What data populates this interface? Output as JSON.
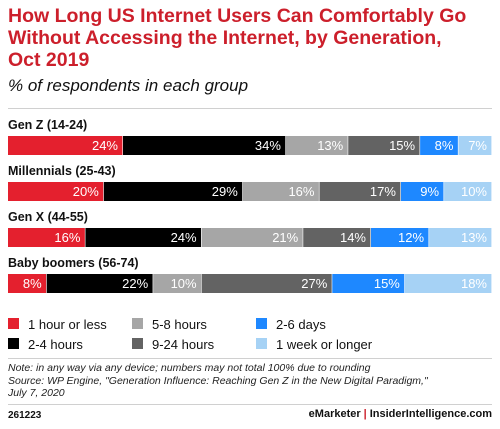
{
  "chart_data": {
    "type": "bar",
    "orientation": "horizontal",
    "stacked": true,
    "title": "How Long US Internet Users Can Comfortably Go Without Accessing the Internet, by Generation, Oct 2019",
    "subtitle": "% of respondents in each group",
    "categories": [
      "Gen Z (14-24)",
      "Millennials (25-43)",
      "Gen X (44-55)",
      "Baby boomers (56-74)"
    ],
    "series": [
      {
        "name": "1 hour or less",
        "color": "#e4202e",
        "text_color": "#ffffff",
        "values": [
          24,
          20,
          16,
          8
        ]
      },
      {
        "name": "2-4 hours",
        "color": "#000000",
        "text_color": "#ffffff",
        "values": [
          34,
          29,
          24,
          22
        ]
      },
      {
        "name": "5-8 hours",
        "color": "#a6a6a6",
        "text_color": "#ffffff",
        "values": [
          13,
          16,
          21,
          10
        ]
      },
      {
        "name": "9-24 hours",
        "color": "#636363",
        "text_color": "#ffffff",
        "values": [
          15,
          17,
          14,
          27
        ]
      },
      {
        "name": "2-6 days",
        "color": "#1e88ff",
        "text_color": "#ffffff",
        "values": [
          8,
          9,
          12,
          15
        ]
      },
      {
        "name": "1 week or longer",
        "color": "#a6d2f5",
        "text_color": "#ffffff",
        "values": [
          7,
          10,
          13,
          18
        ]
      }
    ],
    "value_suffix": "%",
    "legend_position": "bottom",
    "legend_order": [
      "1 hour or less",
      "5-8 hours",
      "2-6 days",
      "2-4 hours",
      "9-24 hours",
      "1 week or longer"
    ],
    "grid": false
  },
  "footer": {
    "note_lines": [
      "Note: in any way via any device; numbers may not total 100% due to rounding",
      "Source: WP Engine, \"Generation Influence: Reaching Gen Z in the New Digital Paradigm,\"",
      "July 7, 2020"
    ],
    "chart_id": "261223",
    "brand_left": "eMarketer",
    "brand_separator": "|",
    "brand_right": "InsiderIntelligence.com"
  }
}
